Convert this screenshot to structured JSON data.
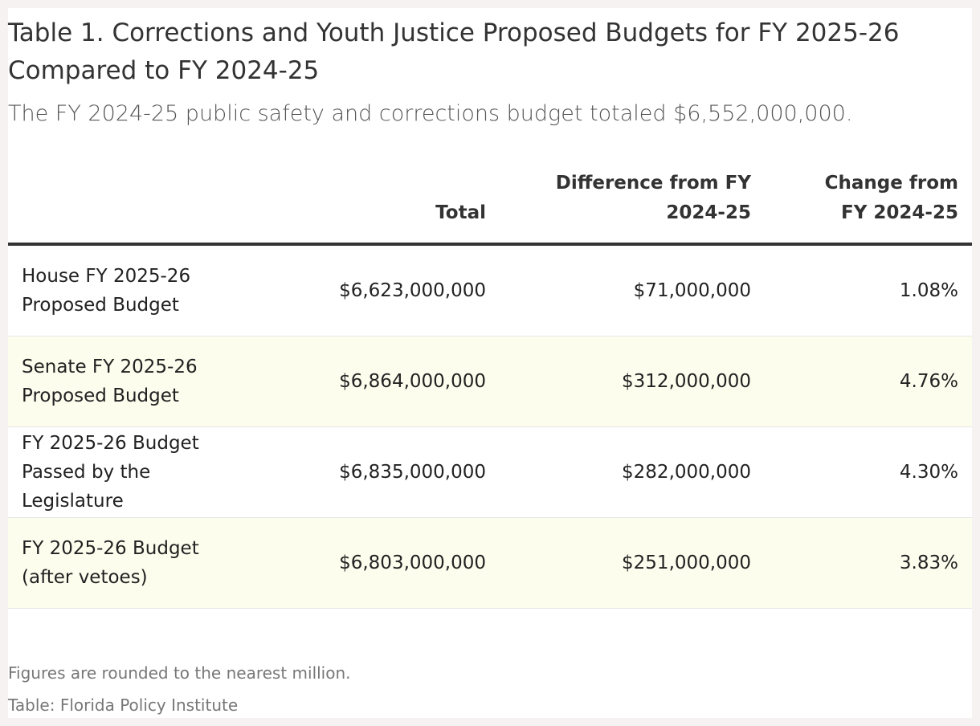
{
  "header": {
    "title": "Table 1. Corrections and Youth Justice Proposed Budgets for FY 2025-26 Compared to FY 2024-25",
    "subtitle": "The FY 2024-25 public safety and corrections budget totaled $6,552,000,000."
  },
  "table": {
    "columns": [
      "Total",
      "Difference from FY 2024-25",
      "Change from FY 2024-25"
    ],
    "rows": [
      [
        "House FY 2025-26 Proposed Budget",
        "$6,623,000,000",
        "$71,000,000",
        "1.08%"
      ],
      [
        "Senate FY 2025-26 Proposed Budget",
        "$6,864,000,000",
        "$312,000,000",
        "4.76%"
      ],
      [
        "FY 2025-26 Budget Passed by the Legislature",
        "$6,835,000,000",
        "$282,000,000",
        "4.30%"
      ],
      [
        "FY 2025-26 Budget (after vetoes)",
        "$6,803,000,000",
        "$251,000,000",
        "3.83%"
      ]
    ]
  },
  "footer": {
    "note": "Figures are rounded to the nearest million.",
    "source": "Table: Florida Policy Institute"
  }
}
